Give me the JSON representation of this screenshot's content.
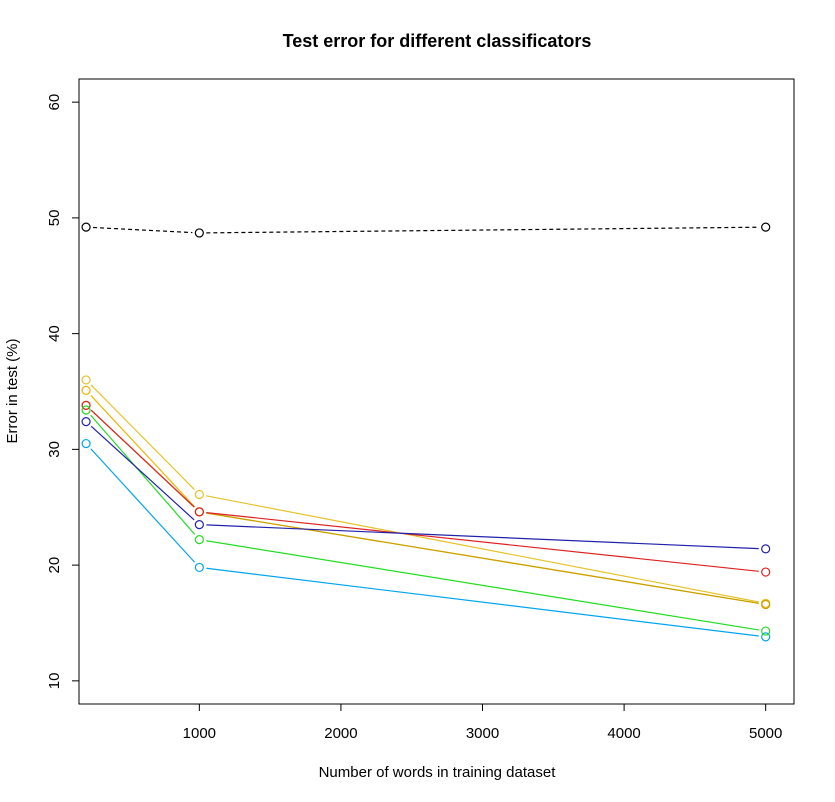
{
  "chart_data": {
    "type": "line",
    "title": "Test error for different classificators",
    "xlabel": "Number of words in training dataset",
    "ylabel": "Error in test (%)",
    "xlim": [
      150,
      5200
    ],
    "ylim": [
      8,
      62
    ],
    "x_ticks": [
      1000,
      2000,
      3000,
      4000,
      5000
    ],
    "y_ticks": [
      10,
      20,
      30,
      40,
      50,
      60
    ],
    "grid": false,
    "legend": "none",
    "x": [
      200,
      1000,
      5000
    ],
    "series": [
      {
        "color": "#000000",
        "dash": true,
        "values": [
          49.2,
          48.7,
          49.2
        ]
      },
      {
        "color": "#e6c229",
        "values": [
          36.0,
          26.1,
          16.7
        ]
      },
      {
        "color": "#f0b400",
        "values": [
          35.1,
          24.6,
          16.6
        ]
      },
      {
        "color": "#c8a000",
        "values": [
          33.8,
          24.6,
          16.6
        ]
      },
      {
        "color": "#dd2222",
        "values": [
          33.8,
          24.6,
          19.4
        ]
      },
      {
        "color": "#00a5ee",
        "values": [
          30.5,
          19.8,
          13.8
        ]
      },
      {
        "color": "#22dd22",
        "values": [
          33.4,
          22.2,
          14.3
        ]
      },
      {
        "color": "#2222aa",
        "values": [
          32.4,
          23.5,
          21.4
        ]
      }
    ]
  }
}
